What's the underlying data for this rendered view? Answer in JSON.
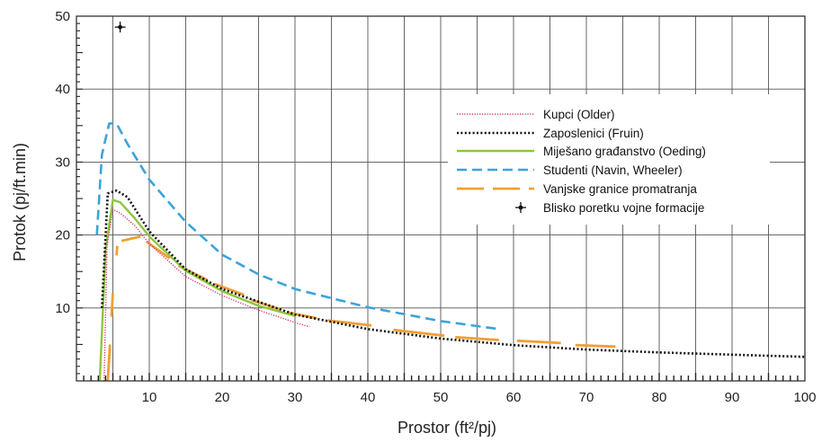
{
  "chart_data": {
    "type": "line",
    "xlabel": "Prostor (ft²/pj)",
    "ylabel": "Protok (pj/ft.min)",
    "xlim": [
      0,
      100
    ],
    "ylim": [
      0,
      50
    ],
    "xticks": [
      "10",
      "20",
      "30",
      "40",
      "50",
      "60",
      "70",
      "80",
      "90",
      "100"
    ],
    "yticks": [
      "10",
      "20",
      "30",
      "40",
      "50"
    ],
    "grid": true,
    "legend_position": "upper-right",
    "series": [
      {
        "name": "Kupci (Older)",
        "color": "#d6336c",
        "style": "dotted-thin",
        "x": [
          3.8,
          4.2,
          5,
          6,
          8,
          10,
          15,
          20,
          25,
          30,
          32
        ],
        "y": [
          0,
          18.5,
          23.5,
          23,
          21.3,
          18.8,
          14.3,
          11.7,
          9.7,
          8.0,
          7.4
        ]
      },
      {
        "name": "Zaposlenici (Fruin)",
        "color": "#111111",
        "style": "dotted",
        "x": [
          3.5,
          4.3,
          5.5,
          7,
          10,
          15,
          20,
          30,
          40,
          50,
          60,
          70,
          80,
          90,
          100
        ],
        "y": [
          10,
          25.7,
          26.1,
          25.2,
          20.5,
          15.3,
          12.6,
          9.1,
          7.1,
          5.8,
          4.9,
          4.3,
          3.9,
          3.6,
          3.3
        ]
      },
      {
        "name": "Miješano građanstvo (Oeding)",
        "color": "#8dc63f",
        "style": "solid",
        "x": [
          3.2,
          4,
          5,
          6,
          8,
          10,
          15,
          20,
          25,
          30
        ],
        "y": [
          0,
          18,
          24.8,
          24.5,
          22.3,
          19.8,
          15.1,
          12.3,
          10.3,
          8.9
        ]
      },
      {
        "name": "Studenti (Navin, Wheeler)",
        "color": "#3ba3d9",
        "style": "dashed",
        "x": [
          2.8,
          3.5,
          4.5,
          5.5,
          7,
          10,
          15,
          20,
          25,
          30,
          40,
          50,
          58
        ],
        "y": [
          20,
          31,
          35.3,
          35.3,
          32.5,
          27.6,
          21.8,
          17.3,
          14.6,
          12.6,
          10.1,
          8.2,
          7.1
        ]
      },
      {
        "name": "Vanjske granice promatranja",
        "color": "#f0a035",
        "style": "long-dashed",
        "segments": [
          {
            "x": [
              4.3,
              4.6
            ],
            "y": [
              0,
              5
            ]
          },
          {
            "x": [
              4.8,
              5.0
            ],
            "y": [
              8.8,
              12
            ]
          },
          {
            "x": [
              5.5,
              5.6
            ],
            "y": [
              17.2,
              18.5
            ]
          },
          {
            "x": [
              6.2,
              8.8
            ],
            "y": [
              19.2,
              19.8
            ]
          },
          {
            "x": [
              9.6,
              12.8
            ],
            "y": [
              19.1,
              16.8
            ]
          },
          {
            "x": [
              14,
              18
            ],
            "y": [
              15.8,
              13.8
            ]
          },
          {
            "x": [
              19,
              23
            ],
            "y": [
              13.3,
              11.8
            ]
          },
          {
            "x": [
              24,
              28
            ],
            "y": [
              11.1,
              9.8
            ]
          },
          {
            "x": [
              29,
              33
            ],
            "y": [
              9.4,
              8.6
            ]
          },
          {
            "x": [
              34.5,
              40.5
            ],
            "y": [
              8.3,
              7.6
            ]
          },
          {
            "x": [
              43.5,
              50.5
            ],
            "y": [
              7.0,
              6.2
            ]
          },
          {
            "x": [
              52,
              58
            ],
            "y": [
              6.0,
              5.6
            ]
          },
          {
            "x": [
              60.5,
              66.5
            ],
            "y": [
              5.5,
              5.2
            ]
          },
          {
            "x": [
              68.5,
              74
            ],
            "y": [
              4.9,
              4.7
            ]
          }
        ]
      }
    ],
    "points": [
      {
        "name": "Blisko poretku vojne formacije",
        "color": "#111111",
        "x": 6,
        "y": 48.5
      }
    ]
  }
}
